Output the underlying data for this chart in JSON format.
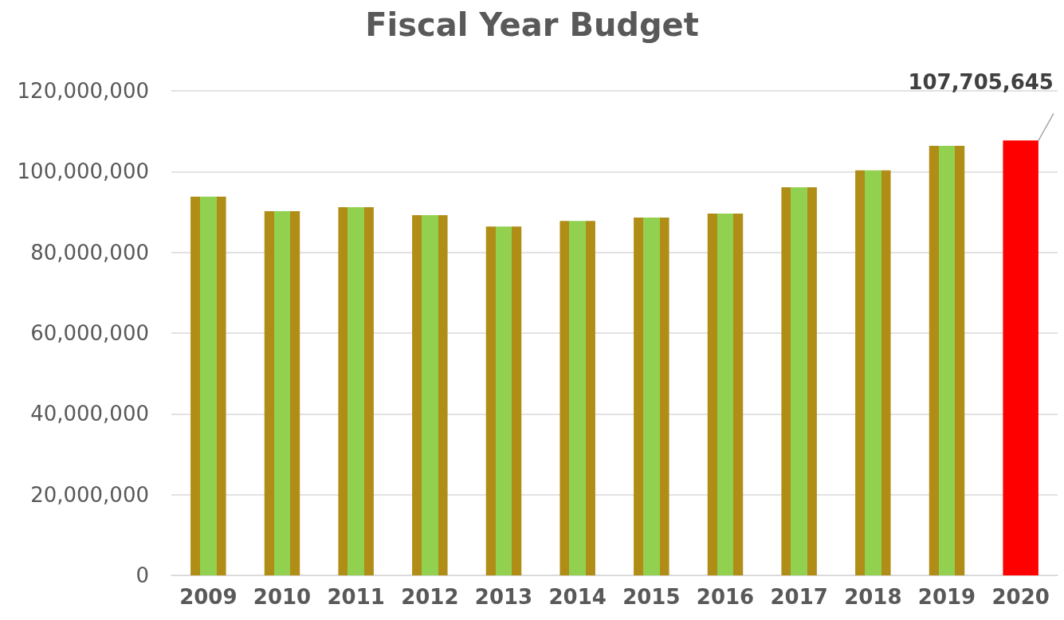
{
  "chart_data": {
    "type": "bar",
    "title": "Fiscal Year Budget",
    "categories": [
      "2009",
      "2010",
      "2011",
      "2012",
      "2013",
      "2014",
      "2015",
      "2016",
      "2017",
      "2018",
      "2019",
      "2020"
    ],
    "values": [
      93800000,
      90200000,
      91200000,
      89200000,
      86400000,
      87800000,
      88600000,
      89600000,
      96100000,
      100300000,
      106400000,
      107705645
    ],
    "colors": [
      "#92d050",
      "#92d050",
      "#92d050",
      "#92d050",
      "#92d050",
      "#92d050",
      "#92d050",
      "#92d050",
      "#92d050",
      "#92d050",
      "#92d050",
      "#ff0000"
    ],
    "value_labels": [
      null,
      null,
      null,
      null,
      null,
      null,
      null,
      null,
      null,
      null,
      null,
      "107,705,645"
    ],
    "ylim": [
      0,
      120000000
    ],
    "yticks": [
      0,
      {
        "value": 20000000,
        "label": "20,000,000"
      },
      {
        "value": 40000000,
        "label": "40,000,000"
      },
      {
        "value": 60000000,
        "label": "60,000,000"
      },
      {
        "value": 80000000,
        "label": "80,000,000"
      },
      {
        "value": 100000000,
        "label": "100,000,000"
      },
      {
        "value": 120000000,
        "label": "120,000,000"
      }
    ],
    "grid": "y"
  }
}
